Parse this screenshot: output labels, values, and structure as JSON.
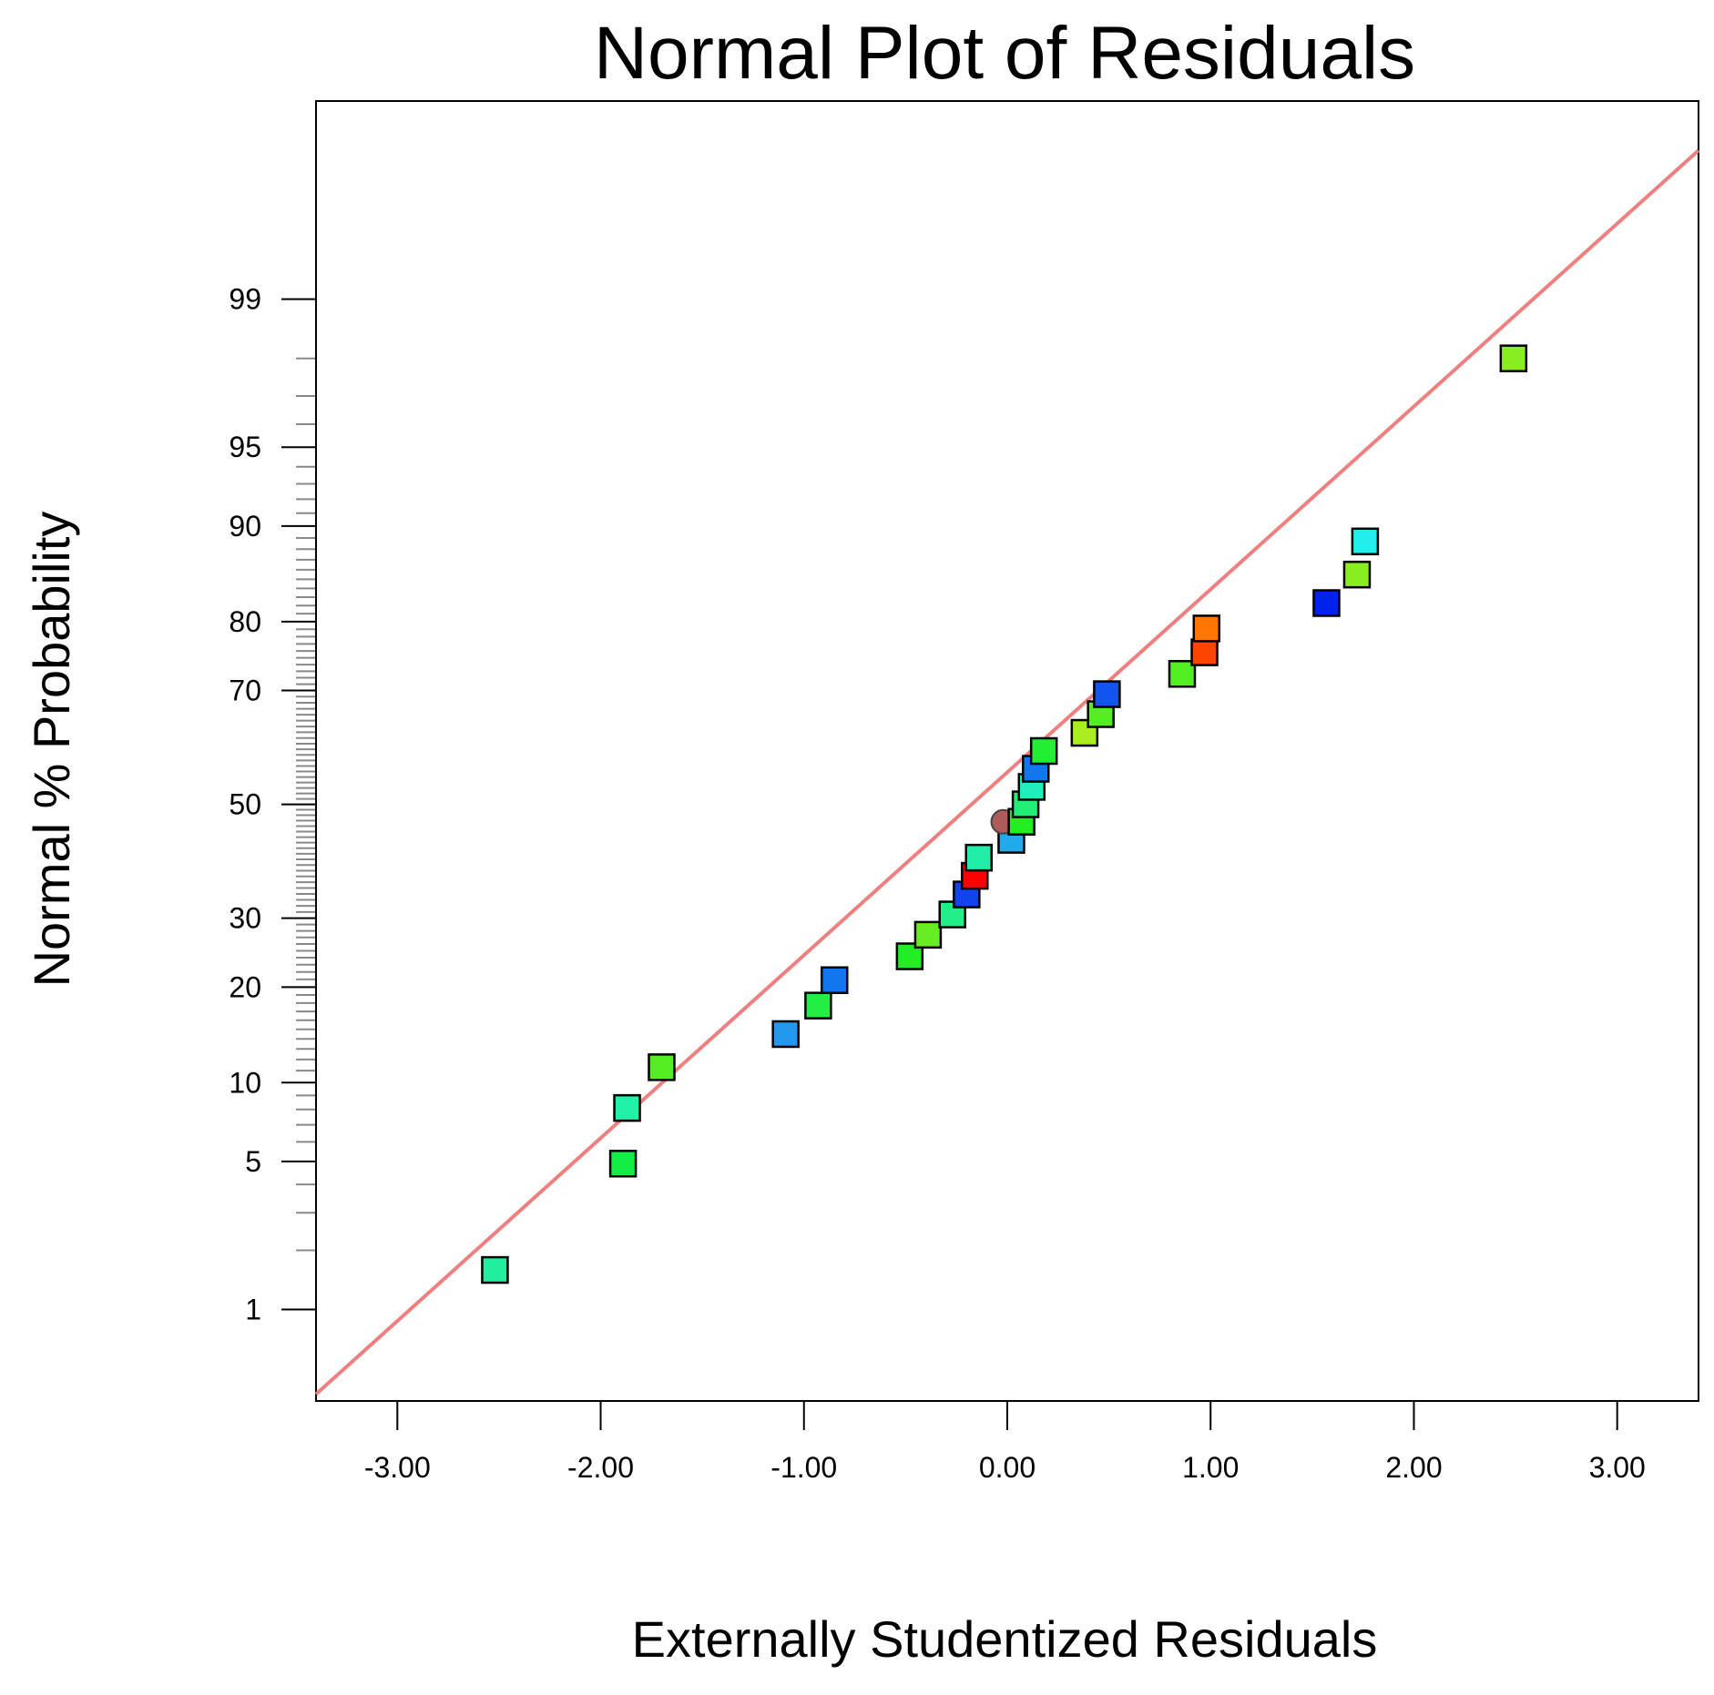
{
  "chart_data": {
    "type": "scatter",
    "title": "Normal Plot of Residuals",
    "xlabel": "Externally Studentized Residuals",
    "ylabel": "Normal % Probability",
    "xlim": [
      -3.4,
      3.4
    ],
    "x_ticks": [
      -3.0,
      -2.0,
      -1.0,
      0.0,
      1.0,
      2.0,
      3.0
    ],
    "x_tick_labels": [
      "-3.00",
      "-2.00",
      "-1.00",
      "0.00",
      "1.00",
      "2.00",
      "3.00"
    ],
    "y_scale": "normal-probability",
    "ylim_percent": [
      0.3,
      99.94
    ],
    "y_ticks": [
      1,
      5,
      10,
      20,
      30,
      50,
      70,
      80,
      90,
      95,
      99
    ],
    "y_tick_labels": [
      "1",
      "5",
      "10",
      "20",
      "30",
      "50",
      "70",
      "80",
      "90",
      "95",
      "99"
    ],
    "y_minor_ticks": [
      2,
      3,
      4,
      6,
      7,
      8,
      9,
      11,
      12,
      13,
      14,
      15,
      16,
      17,
      18,
      19,
      21,
      22,
      23,
      24,
      25,
      26,
      27,
      28,
      29,
      31,
      32,
      33,
      34,
      35,
      36,
      37,
      38,
      39,
      40,
      41,
      42,
      43,
      44,
      45,
      46,
      47,
      48,
      49,
      51,
      52,
      53,
      54,
      55,
      56,
      57,
      58,
      59,
      60,
      61,
      62,
      63,
      64,
      65,
      66,
      67,
      68,
      69,
      71,
      72,
      73,
      74,
      75,
      76,
      77,
      78,
      79,
      81,
      82,
      83,
      84,
      85,
      86,
      87,
      88,
      89,
      91,
      92,
      93,
      94,
      96,
      97,
      98
    ],
    "reference_line": {
      "x": [
        -3.4,
        3.4
      ],
      "percent": [
        0.33,
        99.87
      ],
      "color": "#f08080"
    },
    "points": [
      {
        "x": -2.52,
        "p": 1.6,
        "color": "#22eea0",
        "shape": "square"
      },
      {
        "x": -1.89,
        "p": 4.9,
        "color": "#11ee44",
        "shape": "square"
      },
      {
        "x": -1.87,
        "p": 8.1,
        "color": "#22f2a8",
        "shape": "square"
      },
      {
        "x": -1.7,
        "p": 11.3,
        "color": "#55ee22",
        "shape": "square"
      },
      {
        "x": -1.09,
        "p": 14.5,
        "color": "#2299ee",
        "shape": "square"
      },
      {
        "x": -0.93,
        "p": 17.7,
        "color": "#22ee44",
        "shape": "square"
      },
      {
        "x": -0.85,
        "p": 20.9,
        "color": "#1177ee",
        "shape": "square"
      },
      {
        "x": -0.48,
        "p": 24.2,
        "color": "#22ee22",
        "shape": "square"
      },
      {
        "x": -0.39,
        "p": 27.4,
        "color": "#66ee22",
        "shape": "square"
      },
      {
        "x": -0.27,
        "p": 30.6,
        "color": "#22ee88",
        "shape": "square"
      },
      {
        "x": -0.2,
        "p": 33.9,
        "color": "#1144ee",
        "shape": "square"
      },
      {
        "x": -0.16,
        "p": 37.1,
        "color": "#ff0000",
        "shape": "square"
      },
      {
        "x": -0.14,
        "p": 40.3,
        "color": "#22eeaa",
        "shape": "square"
      },
      {
        "x": 0.02,
        "p": 43.5,
        "color": "#22aaee",
        "shape": "square"
      },
      {
        "x": -0.02,
        "p": 46.8,
        "color": "#b05a5a",
        "shape": "circle"
      },
      {
        "x": 0.07,
        "p": 46.8,
        "color": "#22ee22",
        "shape": "square"
      },
      {
        "x": 0.09,
        "p": 50.0,
        "color": "#22ee77",
        "shape": "square"
      },
      {
        "x": 0.12,
        "p": 53.2,
        "color": "#22eebb",
        "shape": "square"
      },
      {
        "x": 0.14,
        "p": 56.5,
        "color": "#1177ee",
        "shape": "square"
      },
      {
        "x": 0.18,
        "p": 59.7,
        "color": "#22ee33",
        "shape": "square"
      },
      {
        "x": 0.38,
        "p": 62.9,
        "color": "#aaee22",
        "shape": "square"
      },
      {
        "x": 0.46,
        "p": 66.1,
        "color": "#55ee22",
        "shape": "square"
      },
      {
        "x": 0.49,
        "p": 69.4,
        "color": "#1155ee",
        "shape": "square"
      },
      {
        "x": 0.86,
        "p": 72.6,
        "color": "#55ee22",
        "shape": "square"
      },
      {
        "x": 0.97,
        "p": 75.8,
        "color": "#ff4400",
        "shape": "square"
      },
      {
        "x": 0.98,
        "p": 79.1,
        "color": "#ff7700",
        "shape": "square"
      },
      {
        "x": 1.57,
        "p": 82.3,
        "color": "#0022ee",
        "shape": "square"
      },
      {
        "x": 1.72,
        "p": 85.5,
        "color": "#88ee22",
        "shape": "square"
      },
      {
        "x": 1.76,
        "p": 88.7,
        "color": "#22eeee",
        "shape": "square"
      },
      {
        "x": 2.49,
        "p": 98.0,
        "color": "#88ee22",
        "shape": "square"
      }
    ]
  }
}
